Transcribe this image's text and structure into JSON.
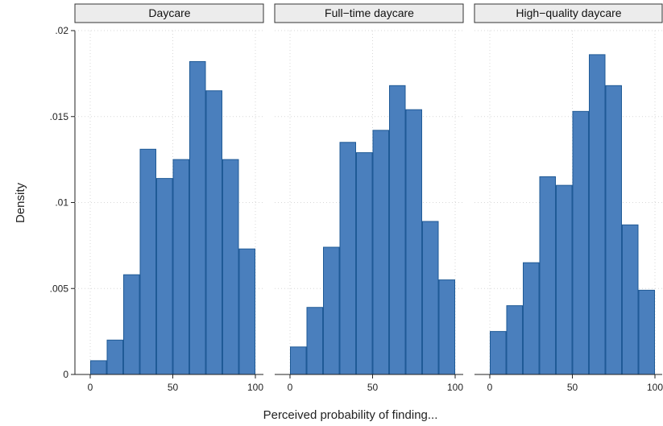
{
  "chart_data": {
    "type": "bar",
    "subtype": "histogram-facets",
    "xlabel": "Perceived probability of finding...",
    "ylabel": "Density",
    "xlim": [
      0,
      100
    ],
    "ylim": [
      0,
      0.02
    ],
    "x_ticks": [
      0,
      50,
      100
    ],
    "x_tick_labels": [
      "0",
      "50",
      "100"
    ],
    "y_ticks": [
      0,
      0.005,
      0.01,
      0.015,
      0.02
    ],
    "y_tick_labels": [
      "0",
      ".005",
      ".01",
      ".015",
      ".02"
    ],
    "bin_width": 10,
    "bins": [
      0,
      10,
      20,
      30,
      40,
      50,
      60,
      70,
      80,
      90
    ],
    "grid": true,
    "bar_color": "#4a7fbd",
    "panels": [
      {
        "title": "Daycare",
        "values": [
          0.0008,
          0.002,
          0.0058,
          0.0131,
          0.0114,
          0.0125,
          0.0182,
          0.0165,
          0.0125,
          0.0073
        ]
      },
      {
        "title": "Full−time daycare",
        "values": [
          0.0016,
          0.0039,
          0.0074,
          0.0135,
          0.0129,
          0.0142,
          0.0168,
          0.0154,
          0.0089,
          0.0055
        ]
      },
      {
        "title": "High−quality daycare",
        "values": [
          0.0025,
          0.004,
          0.0065,
          0.0115,
          0.011,
          0.0153,
          0.0186,
          0.0168,
          0.0087,
          0.0049
        ]
      }
    ]
  }
}
